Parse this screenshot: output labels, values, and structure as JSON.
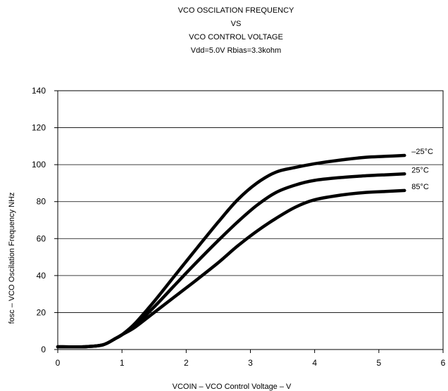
{
  "chart_data": {
    "type": "line",
    "title_lines": [
      "VCO OSCILATION FREQUENCY",
      "VS",
      "VCO CONTROL VOLTAGE",
      "Vdd=5.0V Rbias=3.3kohm"
    ],
    "xlabel": "VCOIN – VCO Control Voltage – V",
    "ylabel": "fosc – VCO Oscilation Frequency NHz",
    "xlim": [
      0,
      6
    ],
    "ylim": [
      0,
      140
    ],
    "xticks": [
      "0",
      "1",
      "2",
      "3",
      "4",
      "5",
      "6"
    ],
    "yticks": [
      "0",
      "20",
      "40",
      "60",
      "80",
      "100",
      "120",
      "140"
    ],
    "grid": "horizontal",
    "series": [
      {
        "name": "–25°C",
        "color": "#000000",
        "x": [
          0,
          0.4,
          0.7,
          0.9,
          1.0,
          1.2,
          1.5,
          1.8,
          2.1,
          2.5,
          2.8,
          3.1,
          3.4,
          3.7,
          4.0,
          4.4,
          4.8,
          5.1,
          5.4
        ],
        "y": [
          1.5,
          1.5,
          2.5,
          6,
          8,
          14,
          26,
          39,
          52,
          69,
          81,
          90,
          96,
          98.5,
          100.5,
          102.5,
          104,
          104.5,
          105
        ]
      },
      {
        "name": "25°C",
        "color": "#000000",
        "x": [
          0,
          0.4,
          0.7,
          0.9,
          1.0,
          1.2,
          1.5,
          1.8,
          2.1,
          2.5,
          2.8,
          3.1,
          3.4,
          3.7,
          4.0,
          4.4,
          4.8,
          5.1,
          5.4
        ],
        "y": [
          1.5,
          1.5,
          2.5,
          6,
          8,
          13,
          23,
          34,
          45,
          59,
          69,
          78,
          85,
          89,
          91.5,
          93,
          94,
          94.5,
          95
        ]
      },
      {
        "name": "85°C",
        "color": "#000000",
        "x": [
          0,
          0.4,
          0.7,
          0.9,
          1.0,
          1.2,
          1.5,
          1.8,
          2.1,
          2.5,
          2.8,
          3.1,
          3.4,
          3.7,
          4.0,
          4.4,
          4.8,
          5.1,
          5.4
        ],
        "y": [
          1.5,
          1.5,
          2.5,
          6,
          8,
          12,
          20,
          28,
          36,
          47,
          56,
          64,
          71,
          77,
          81,
          83.5,
          85,
          85.5,
          86
        ]
      }
    ]
  }
}
